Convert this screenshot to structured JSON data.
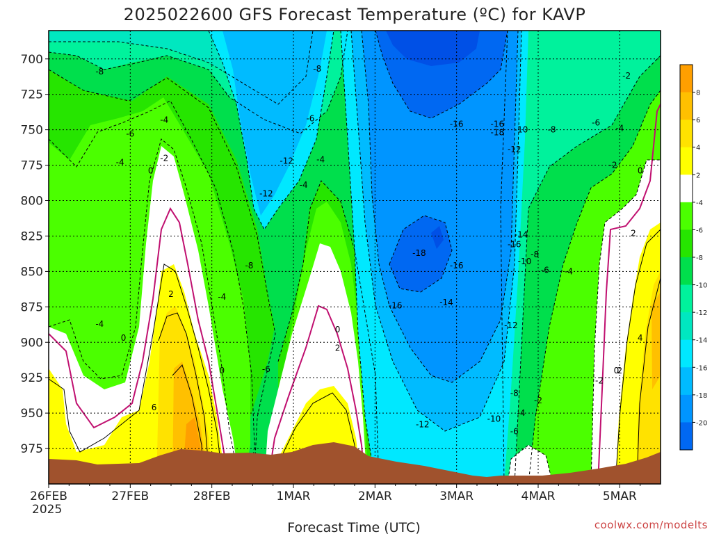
{
  "chart_data": {
    "type": "heatmap",
    "title": "2025022600 GFS Forecast Temperature (ºC) for KAVP",
    "xlabel": "Forecast Time (UTC)",
    "ylabel": "",
    "x_ticks": [
      "26FEB",
      "27FEB",
      "28FEB",
      "1MAR",
      "2MAR",
      "3MAR",
      "4MAR",
      "5MAR"
    ],
    "x_tick_sublabel": "2025",
    "y_ticks": [
      700,
      725,
      750,
      775,
      800,
      825,
      850,
      875,
      900,
      925,
      950,
      975
    ],
    "ylim": [
      1000,
      680
    ],
    "xlim": [
      "2025-02-26T00",
      "2025-03-05T12"
    ],
    "y_scale": "pressure (hPa), inverted",
    "grid": true,
    "colorbar_ticks": [
      8,
      6,
      4,
      2,
      -4,
      -6,
      -8,
      -10,
      -12,
      -14,
      -16,
      -18,
      -20
    ],
    "colorbar_colors": [
      "#ff9f00",
      "#ffc000",
      "#ffe200",
      "#ffff00",
      "#ffffff",
      "#4bff00",
      "#26e500",
      "#00df4c",
      "#00f29c",
      "#00e7c0",
      "#00e8ff",
      "#00bbff",
      "#0095ff",
      "#0068f2"
    ],
    "contour_labels": [
      {
        "time": "2025-02-26T15",
        "p": 709,
        "v": "-8"
      },
      {
        "time": "2025-02-26T21",
        "p": 773,
        "v": "-4"
      },
      {
        "time": "2025-02-26T15",
        "p": 887,
        "v": "-4"
      },
      {
        "time": "2025-02-26T22",
        "p": 897,
        "v": "0"
      },
      {
        "time": "2025-02-27T06",
        "p": 779,
        "v": "0"
      },
      {
        "time": "2025-02-27T00",
        "p": 753,
        "v": "-6"
      },
      {
        "time": "2025-02-27T10",
        "p": 743,
        "v": "-4"
      },
      {
        "time": "2025-02-27T10",
        "p": 770,
        "v": "-2"
      },
      {
        "time": "2025-02-27T12",
        "p": 866,
        "v": "2"
      },
      {
        "time": "2025-02-27T07",
        "p": 946,
        "v": "6"
      },
      {
        "time": "2025-02-28T03",
        "p": 868,
        "v": "-4"
      },
      {
        "time": "2025-02-28T03",
        "p": 920,
        "v": "0"
      },
      {
        "time": "2025-02-28T11",
        "p": 846,
        "v": "-8"
      },
      {
        "time": "2025-02-28T16",
        "p": 919,
        "v": "-6"
      },
      {
        "time": "2025-02-28T22",
        "p": 772,
        "v": "-12"
      },
      {
        "time": "2025-02-28T16",
        "p": 795,
        "v": "-12"
      },
      {
        "time": "2025-03-01T07",
        "p": 707,
        "v": "-8"
      },
      {
        "time": "2025-03-01T05",
        "p": 742,
        "v": "-6"
      },
      {
        "time": "2025-03-01T08",
        "p": 771,
        "v": "-4"
      },
      {
        "time": "2025-03-01T03",
        "p": 789,
        "v": "-4"
      },
      {
        "time": "2025-03-01T13",
        "p": 891,
        "v": "0"
      },
      {
        "time": "2025-03-01T13",
        "p": 904,
        "v": "2"
      },
      {
        "time": "2025-03-02T06",
        "p": 874,
        "v": "-16"
      },
      {
        "time": "2025-03-02T13",
        "p": 837,
        "v": "-18"
      },
      {
        "time": "2025-03-02T14",
        "p": 958,
        "v": "-12"
      },
      {
        "time": "2025-03-02T21",
        "p": 872,
        "v": "-14"
      },
      {
        "time": "2025-03-03T00",
        "p": 846,
        "v": "-16"
      },
      {
        "time": "2025-03-03T00",
        "p": 746,
        "v": "-16"
      },
      {
        "time": "2025-03-03T12",
        "p": 746,
        "v": "-16"
      },
      {
        "time": "2025-03-03T12",
        "p": 752,
        "v": "-18"
      },
      {
        "time": "2025-03-03T19",
        "p": 750,
        "v": "-10"
      },
      {
        "time": "2025-03-03T17",
        "p": 764,
        "v": "-12"
      },
      {
        "time": "2025-03-03T19",
        "p": 824,
        "v": "-14"
      },
      {
        "time": "2025-03-03T17",
        "p": 831,
        "v": "-16"
      },
      {
        "time": "2025-03-03T23",
        "p": 838,
        "v": "-8"
      },
      {
        "time": "2025-03-03T20",
        "p": 843,
        "v": "-10"
      },
      {
        "time": "2025-03-04T02",
        "p": 849,
        "v": "-6"
      },
      {
        "time": "2025-03-04T09",
        "p": 850,
        "v": "-4"
      },
      {
        "time": "2025-03-04T04",
        "p": 750,
        "v": "-8"
      },
      {
        "time": "2025-03-04T17",
        "p": 745,
        "v": "-6"
      },
      {
        "time": "2025-03-05T00",
        "p": 749,
        "v": "-4"
      },
      {
        "time": "2025-03-04T22",
        "p": 775,
        "v": "-2"
      },
      {
        "time": "2025-03-05T06",
        "p": 779,
        "v": "0"
      },
      {
        "time": "2025-03-05T02",
        "p": 712,
        "v": "-2"
      },
      {
        "time": "2025-03-05T04",
        "p": 823,
        "v": "2"
      },
      {
        "time": "2025-03-05T06",
        "p": 897,
        "v": "4"
      },
      {
        "time": "2025-03-03T16",
        "p": 888,
        "v": "-12"
      },
      {
        "time": "2025-03-03T17",
        "p": 936,
        "v": "-8"
      },
      {
        "time": "2025-03-03T11",
        "p": 954,
        "v": "-10"
      },
      {
        "time": "2025-03-03T19",
        "p": 950,
        "v": "-4"
      },
      {
        "time": "2025-03-04T00",
        "p": 941,
        "v": "-2"
      },
      {
        "time": "2025-03-03T17",
        "p": 963,
        "v": "-6"
      },
      {
        "time": "2025-03-04T18",
        "p": 927,
        "v": "-2"
      },
      {
        "time": "2025-03-04T23",
        "p": 920,
        "v": "0"
      },
      {
        "time": "2025-03-05T00",
        "p": 920,
        "v": "2"
      }
    ]
  },
  "watermark": "coolwx.com/modelts"
}
